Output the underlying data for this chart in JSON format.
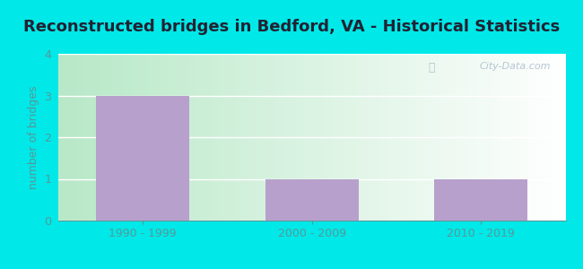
{
  "title": "Reconstructed bridges in Bedford, VA - Historical Statistics",
  "categories": [
    "1990 - 1999",
    "2000 - 2009",
    "2010 - 2019"
  ],
  "values": [
    3,
    1,
    1
  ],
  "bar_color": "#b8a0cc",
  "ylabel": "number of bridges",
  "ylim": [
    0,
    4
  ],
  "yticks": [
    0,
    1,
    2,
    3,
    4
  ],
  "background_outer": "#00e8e8",
  "title_fontsize": 13,
  "ylabel_fontsize": 9,
  "tick_fontsize": 9,
  "watermark": "City-Data.com",
  "bar_width": 0.55,
  "title_color": "#222233",
  "tick_color": "#559999",
  "ylabel_color": "#559999",
  "grid_color": "#c8dfc8",
  "bg_left": "#b8e8c8",
  "bg_right": "#e8f5f8"
}
